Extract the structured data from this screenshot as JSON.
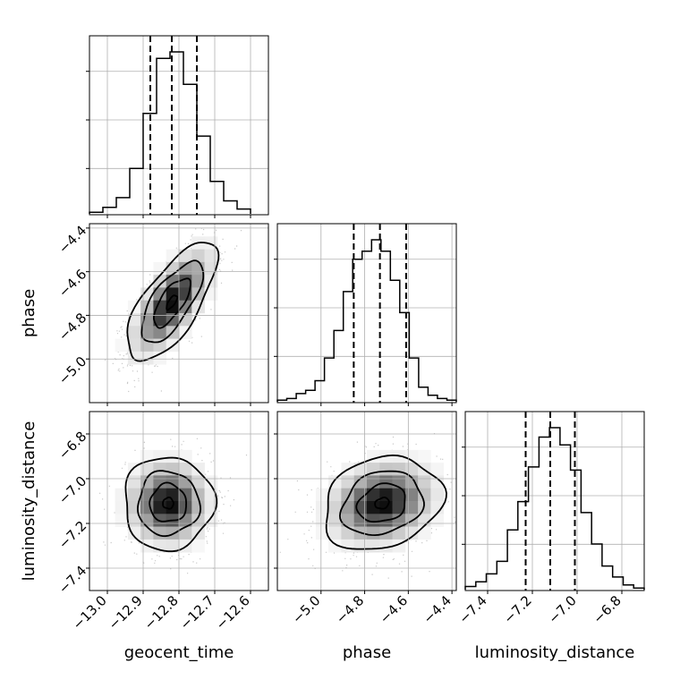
{
  "chart_data": {
    "type": "corner",
    "parameters": [
      {
        "name": "geocent_time",
        "xlabel": "geocent_time",
        "range": [
          -13.05,
          -12.55
        ],
        "ticks": [
          -13.0,
          -12.9,
          -12.8,
          -12.7,
          -12.6
        ],
        "tick_labels": [
          "−13.0",
          "−12.9",
          "−12.8",
          "−12.7",
          "−12.6"
        ],
        "quantiles": [
          -12.88,
          -12.82,
          -12.75
        ],
        "hist_bins": [
          -13.05,
          -13.0125,
          -12.975,
          -12.9375,
          -12.9,
          -12.8625,
          -12.825,
          -12.7875,
          -12.75,
          -12.7125,
          -12.675,
          -12.6375,
          -12.6
        ],
        "hist_counts": [
          0.01,
          0.04,
          0.1,
          0.28,
          0.62,
          0.96,
          1.0,
          0.8,
          0.48,
          0.2,
          0.08,
          0.03
        ]
      },
      {
        "name": "phase",
        "xlabel": "phase",
        "ylabel": "phase",
        "range": [
          -5.2,
          -4.38
        ],
        "ticks": [
          -5.0,
          -4.8,
          -4.6,
          -4.4
        ],
        "tick_labels": [
          "−5.0",
          "−4.8",
          "−4.6",
          "−4.4"
        ],
        "quantiles": [
          -4.85,
          -4.73,
          -4.61
        ],
        "hist_counts": [
          0.01,
          0.02,
          0.05,
          0.07,
          0.13,
          0.27,
          0.44,
          0.68,
          0.88,
          0.93,
          1.0,
          0.93,
          0.75,
          0.55,
          0.27,
          0.09,
          0.04,
          0.02,
          0.01
        ]
      },
      {
        "name": "luminosity_distance",
        "xlabel": "luminosity_distance",
        "ylabel": "luminosity_distance",
        "range": [
          -7.5,
          -6.7
        ],
        "ticks": [
          -7.4,
          -7.2,
          -7.0,
          -6.8
        ],
        "tick_labels": [
          "−7.4",
          "−7.2",
          "−7.0",
          "−6.8"
        ],
        "quantiles": [
          -7.23,
          -7.12,
          -7.01
        ],
        "hist_counts": [
          0.02,
          0.05,
          0.1,
          0.18,
          0.38,
          0.56,
          0.78,
          0.97,
          1.03,
          0.92,
          0.76,
          0.49,
          0.29,
          0.15,
          0.08,
          0.03,
          0.01
        ]
      }
    ],
    "pairs": [
      {
        "x": "geocent_time",
        "y": "phase",
        "peak": [
          -12.82,
          -4.74
        ],
        "sd": [
          0.06,
          0.13
        ],
        "correlation": 0.7
      },
      {
        "x": "geocent_time",
        "y": "luminosity_distance",
        "peak": [
          -12.83,
          -7.11
        ],
        "sd": [
          0.06,
          0.1
        ],
        "correlation": 0.0
      },
      {
        "x": "phase",
        "y": "luminosity_distance",
        "peak": [
          -4.72,
          -7.11
        ],
        "sd": [
          0.13,
          0.1
        ],
        "correlation": 0.2
      }
    ],
    "grid": true
  }
}
